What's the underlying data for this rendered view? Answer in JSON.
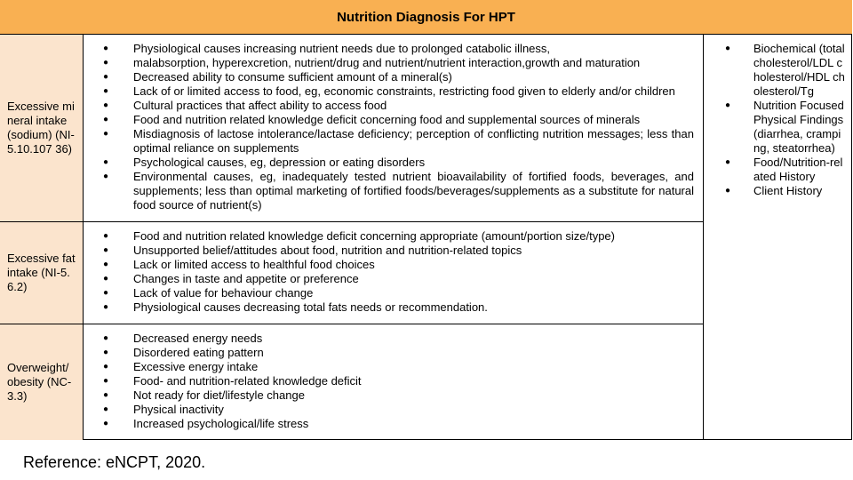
{
  "table": {
    "title": "Nutrition Diagnosis For HPT",
    "rows": [
      {
        "diagnosis": "Excessive mineral intake (sodium) (NI-5.10.107 36)",
        "causes": [
          "Physiological causes increasing nutrient needs due to prolonged catabolic illness,",
          "malabsorption, hyperexcretion, nutrient/drug and nutrient/nutrient interaction,growth and maturation",
          "Decreased ability to consume sufficient amount of a mineral(s)",
          "Lack of or limited access to food, eg, economic constraints, restricting food given to elderly and/or children",
          "Cultural practices that affect ability to access food",
          "Food and nutrition related knowledge deficit concerning food and supplemental sources of minerals",
          "Misdiagnosis of lactose intolerance/lactase deficiency; perception of conflicting nutrition messages; less than optimal reliance on supplements",
          "Psychological causes, eg, depression or eating disorders",
          "Environmental causes, eg, inadequately tested nutrient bioavailability of fortified foods, beverages, and supplements; less than optimal marketing of fortified foods/beverages/supplements as a substitute for natural food source of nutrient(s)"
        ]
      },
      {
        "diagnosis": "Excessive fat intake (NI-5.6.2)",
        "causes": [
          "Food and nutrition related knowledge deficit concerning appropriate (amount/portion size/type)",
          "Unsupported belief/attitudes about food, nutrition and nutrition-related topics",
          "Lack or limited access to healthful food choices",
          "Changes in taste and appetite or preference",
          "Lack of value for behaviour change",
          "Physiological causes decreasing total fats needs or recommendation."
        ]
      },
      {
        "diagnosis": "Overweight/ obesity (NC-3.3)",
        "causes": [
          "Decreased energy needs",
          "Disordered eating pattern",
          "Excessive energy intake",
          "Food- and nutrition-related knowledge deficit",
          "Not ready for diet/lifestyle change",
          "Physical inactivity",
          "Increased psychological/life stress"
        ]
      }
    ],
    "indicators": [
      "Biochemical (total cholesterol/LDL cholesterol/HDL cholesterol/Tg",
      "Nutrition Focused Physical Findings (diarrhea, cramping, steatorrhea)",
      "Food/Nutrition-related History",
      "Client History"
    ]
  },
  "reference": "Reference: eNCPT, 2020."
}
